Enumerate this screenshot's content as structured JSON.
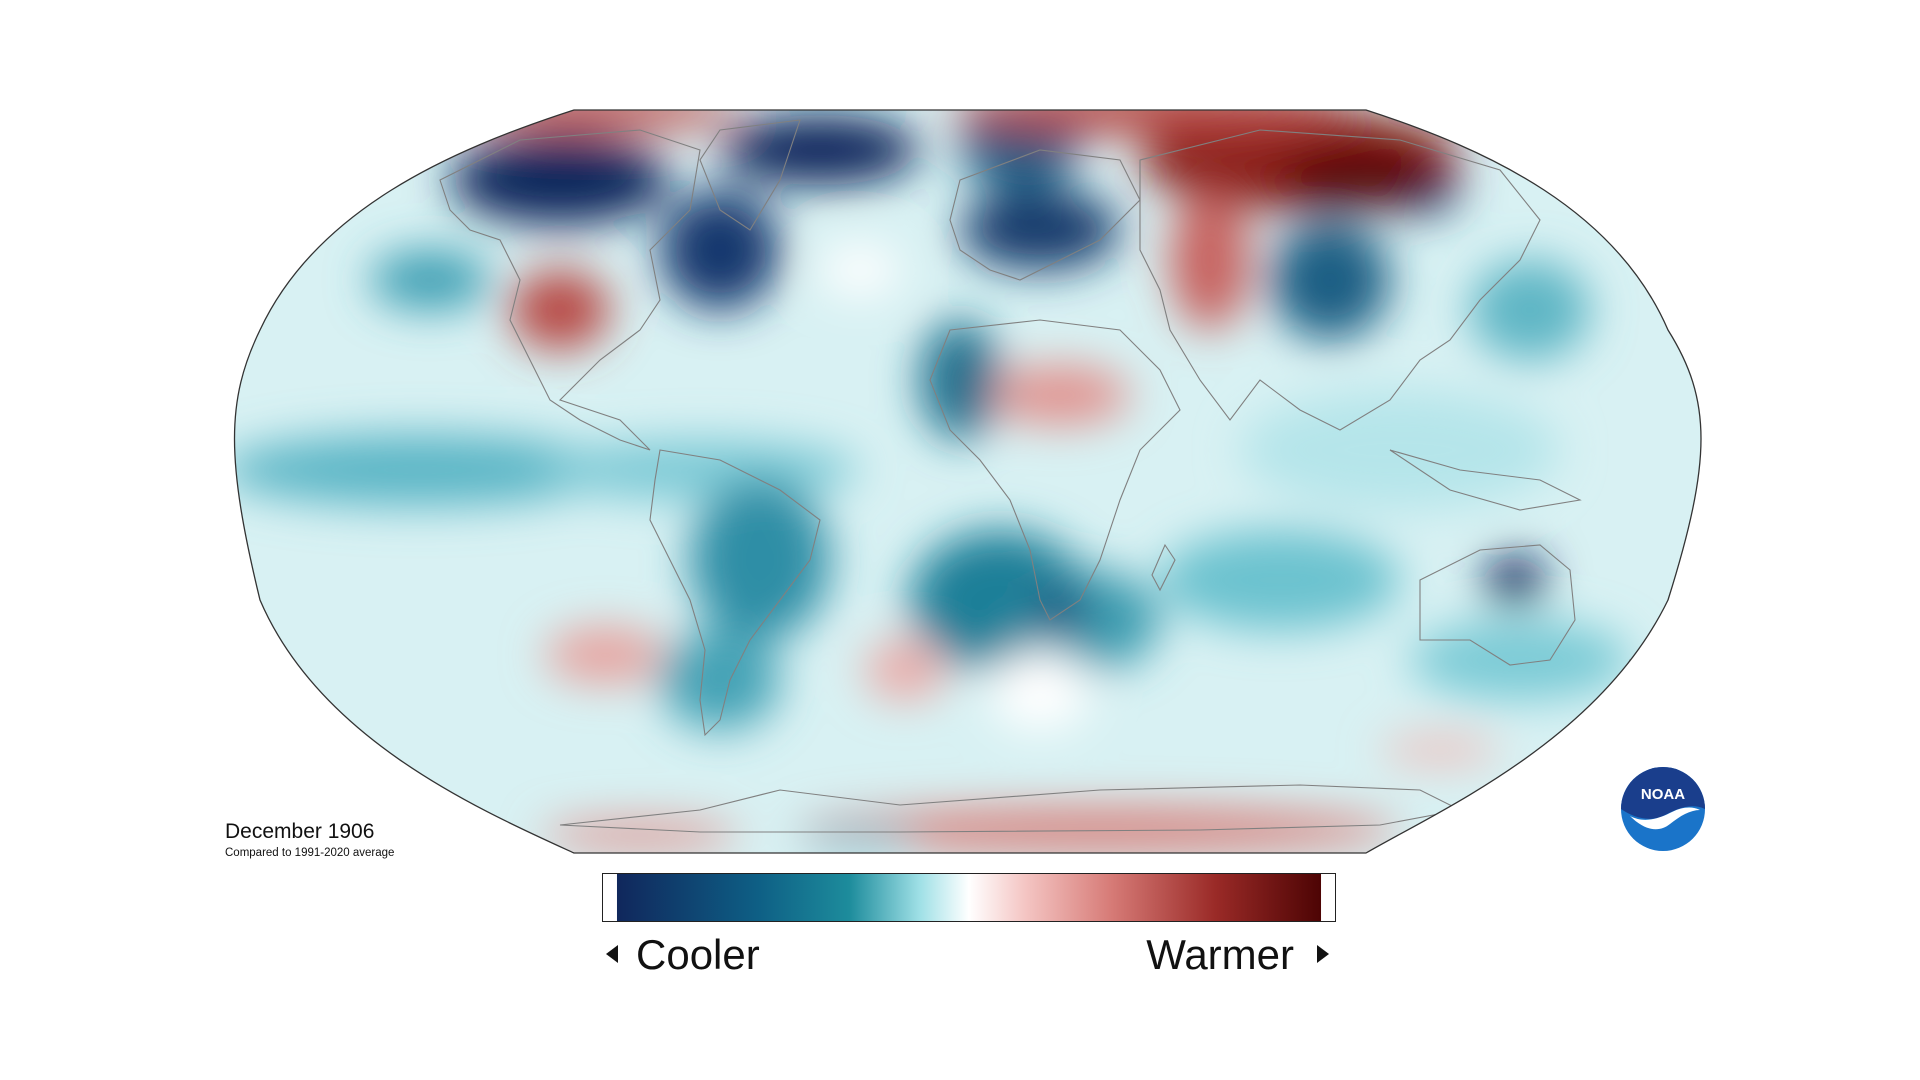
{
  "map": {
    "title": "December 1906",
    "subtitle": "Compared to 1991-2020 average",
    "projection": "Robinson",
    "color_scale": [
      "#10275c",
      "#0e6f8c",
      "#7fd3db",
      "#ffffff",
      "#ea9b98",
      "#a1302d",
      "#520505"
    ]
  },
  "legend": {
    "low_label": "Cooler",
    "high_label": "Warmer"
  },
  "logo": {
    "text": "NOAA",
    "colors": {
      "top": "#1a3e8c",
      "bottom": "#1a74c9",
      "bird": "#ffffff"
    }
  },
  "colors": {
    "land_outline": "#808080",
    "map_border": "#333333",
    "ocean_base": "#d8f1f3"
  }
}
